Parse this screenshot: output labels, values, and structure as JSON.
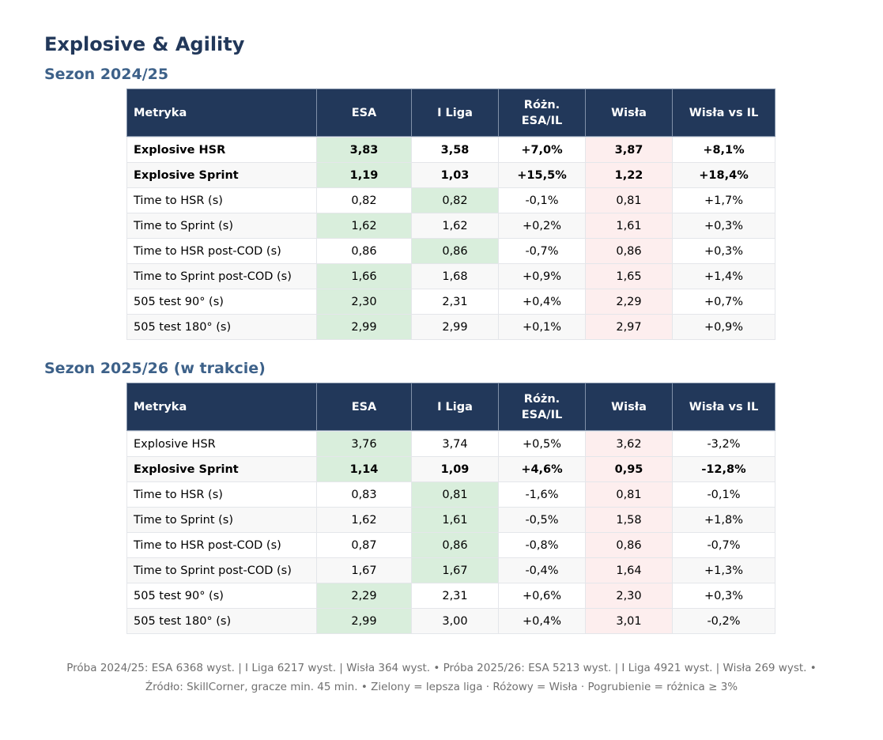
{
  "title": "Explosive & Agility",
  "headers": {
    "metric": "Metryka",
    "esa": "ESA",
    "iliga": "I Liga",
    "diff_line1": "Różn.",
    "diff_line2": "ESA/IL",
    "wisla": "Wisła",
    "wisla_vs": "Wisła vs IL"
  },
  "seasons": [
    {
      "title": "Sezon 2024/25",
      "rows": [
        {
          "metric": "Explosive HSR",
          "esa": "3,83",
          "iliga": "3,58",
          "diff": "+7,0%",
          "wisla": "3,87",
          "wisla_vs": "+8,1%",
          "bold": true,
          "better": "esa"
        },
        {
          "metric": "Explosive Sprint",
          "esa": "1,19",
          "iliga": "1,03",
          "diff": "+15,5%",
          "wisla": "1,22",
          "wisla_vs": "+18,4%",
          "bold": true,
          "better": "esa"
        },
        {
          "metric": "Time to HSR (s)",
          "esa": "0,82",
          "iliga": "0,82",
          "diff": "-0,1%",
          "wisla": "0,81",
          "wisla_vs": "+1,7%",
          "bold": false,
          "better": "iliga"
        },
        {
          "metric": "Time to Sprint (s)",
          "esa": "1,62",
          "iliga": "1,62",
          "diff": "+0,2%",
          "wisla": "1,61",
          "wisla_vs": "+0,3%",
          "bold": false,
          "better": "esa"
        },
        {
          "metric": "Time to HSR post-COD (s)",
          "esa": "0,86",
          "iliga": "0,86",
          "diff": "-0,7%",
          "wisla": "0,86",
          "wisla_vs": "+0,3%",
          "bold": false,
          "better": "iliga"
        },
        {
          "metric": "Time to Sprint post-COD (s)",
          "esa": "1,66",
          "iliga": "1,68",
          "diff": "+0,9%",
          "wisla": "1,65",
          "wisla_vs": "+1,4%",
          "bold": false,
          "better": "esa"
        },
        {
          "metric": "505 test 90° (s)",
          "esa": "2,30",
          "iliga": "2,31",
          "diff": "+0,4%",
          "wisla": "2,29",
          "wisla_vs": "+0,7%",
          "bold": false,
          "better": "esa"
        },
        {
          "metric": "505 test 180° (s)",
          "esa": "2,99",
          "iliga": "2,99",
          "diff": "+0,1%",
          "wisla": "2,97",
          "wisla_vs": "+0,9%",
          "bold": false,
          "better": "esa"
        }
      ]
    },
    {
      "title": "Sezon 2025/26 (w trakcie)",
      "rows": [
        {
          "metric": "Explosive HSR",
          "esa": "3,76",
          "iliga": "3,74",
          "diff": "+0,5%",
          "wisla": "3,62",
          "wisla_vs": "-3,2%",
          "bold": false,
          "better": "esa"
        },
        {
          "metric": "Explosive Sprint",
          "esa": "1,14",
          "iliga": "1,09",
          "diff": "+4,6%",
          "wisla": "0,95",
          "wisla_vs": "-12,8%",
          "bold": true,
          "better": "esa"
        },
        {
          "metric": "Time to HSR (s)",
          "esa": "0,83",
          "iliga": "0,81",
          "diff": "-1,6%",
          "wisla": "0,81",
          "wisla_vs": "-0,1%",
          "bold": false,
          "better": "iliga"
        },
        {
          "metric": "Time to Sprint (s)",
          "esa": "1,62",
          "iliga": "1,61",
          "diff": "-0,5%",
          "wisla": "1,58",
          "wisla_vs": "+1,8%",
          "bold": false,
          "better": "iliga"
        },
        {
          "metric": "Time to HSR post-COD (s)",
          "esa": "0,87",
          "iliga": "0,86",
          "diff": "-0,8%",
          "wisla": "0,86",
          "wisla_vs": "-0,7%",
          "bold": false,
          "better": "iliga"
        },
        {
          "metric": "Time to Sprint post-COD (s)",
          "esa": "1,67",
          "iliga": "1,67",
          "diff": "-0,4%",
          "wisla": "1,64",
          "wisla_vs": "+1,3%",
          "bold": false,
          "better": "iliga"
        },
        {
          "metric": "505 test 90° (s)",
          "esa": "2,29",
          "iliga": "2,31",
          "diff": "+0,6%",
          "wisla": "2,30",
          "wisla_vs": "+0,3%",
          "bold": false,
          "better": "esa"
        },
        {
          "metric": "505 test 180° (s)",
          "esa": "2,99",
          "iliga": "3,00",
          "diff": "+0,4%",
          "wisla": "3,01",
          "wisla_vs": "-0,2%",
          "bold": false,
          "better": "esa"
        }
      ]
    }
  ],
  "colors": {
    "header_bg": "#22385a",
    "green": "#d9eedc",
    "pink": "#fdeeee"
  },
  "footer": {
    "line1": "Próba 2024/25: ESA 6368 wyst. | I Liga 6217 wyst. | Wisła 364 wyst. • Próba 2025/26: ESA 5213 wyst. | I Liga 4921 wyst. | Wisła 269 wyst. •",
    "line2": "Źródło: SkillCorner, gracze min. 45 min. • Zielony = lepsza liga · Różowy = Wisła · Pogrubienie = różnica ≥ 3%"
  }
}
